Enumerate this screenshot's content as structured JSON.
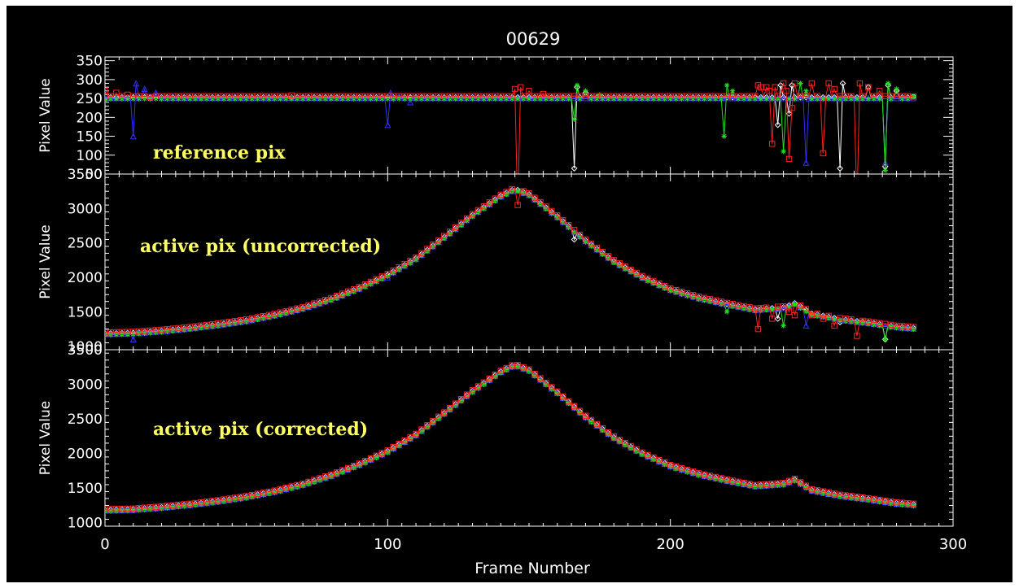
{
  "chart_data": {
    "type": "line",
    "title": "00629",
    "xlabel": "Frame Number",
    "xlim": [
      0,
      300
    ],
    "x_ticks": [
      "0",
      "100",
      "200",
      "300"
    ],
    "colors": {
      "red": "#ff2020",
      "green": "#20e020",
      "blue": "#3030ff",
      "white": "#ffffff"
    },
    "panels": [
      {
        "label": "reference pix",
        "ylabel": "Pixel Value",
        "ylim": [
          50,
          360
        ],
        "y_ticks": [
          "350",
          "300",
          "250",
          "200",
          "150",
          "100",
          "50"
        ],
        "y_tick_values": [
          350,
          300,
          250,
          200,
          150,
          100,
          50
        ],
        "shape": "flat",
        "baseline": 252,
        "series": [
          {
            "color": "red",
            "marker": "square",
            "offset": 4,
            "points": [
              [
                0,
                270
              ],
              [
                4,
                265
              ],
              [
                8,
                260
              ],
              [
                12,
                256
              ],
              [
                16,
                254
              ],
              [
                66,
                258
              ],
              [
                145,
                275
              ],
              [
                146,
                -50
              ],
              [
                147,
                280
              ],
              [
                150,
                270
              ],
              [
                155,
                262
              ],
              [
                231,
                285
              ],
              [
                232,
                280
              ],
              [
                234,
                280
              ],
              [
                235,
                270
              ],
              [
                236,
                130
              ],
              [
                237,
                280
              ],
              [
                240,
                290
              ],
              [
                241,
                270
              ],
              [
                242,
                90
              ],
              [
                243,
                225
              ],
              [
                244,
                290
              ],
              [
                250,
                290
              ],
              [
                254,
                105
              ],
              [
                256,
                290
              ],
              [
                258,
                275
              ],
              [
                266,
                -30
              ],
              [
                267,
                290
              ],
              [
                270,
                280
              ],
              [
                274,
                270
              ],
              [
                286,
                255
              ]
            ]
          },
          {
            "color": "green",
            "marker": "asterisk",
            "offset": -3,
            "points": [
              [
                0,
                245
              ],
              [
                166,
                195
              ],
              [
                167,
                285
              ],
              [
                170,
                270
              ],
              [
                175,
                260
              ],
              [
                219,
                150
              ],
              [
                220,
                285
              ],
              [
                222,
                270
              ],
              [
                240,
                110
              ],
              [
                246,
                290
              ],
              [
                248,
                270
              ],
              [
                276,
                60
              ],
              [
                277,
                290
              ],
              [
                280,
                275
              ],
              [
                286,
                255
              ]
            ]
          },
          {
            "color": "blue",
            "marker": "triangle",
            "offset": -1,
            "points": [
              [
                0,
                252
              ],
              [
                10,
                150
              ],
              [
                11,
                290
              ],
              [
                14,
                275
              ],
              [
                18,
                265
              ],
              [
                100,
                180
              ],
              [
                101,
                265
              ],
              [
                104,
                255
              ],
              [
                108,
                240
              ],
              [
                109,
                252
              ],
              [
                248,
                80
              ],
              [
                249,
                250
              ],
              [
                276,
                80
              ]
            ]
          },
          {
            "color": "white",
            "marker": "diamond",
            "offset": 1,
            "points": [
              [
                0,
                250
              ],
              [
                166,
                65
              ],
              [
                167,
                280
              ],
              [
                170,
                265
              ],
              [
                238,
                180
              ],
              [
                239,
                285
              ],
              [
                242,
                210
              ],
              [
                243,
                285
              ],
              [
                260,
                65
              ],
              [
                261,
                290
              ],
              [
                270,
                280
              ],
              [
                276,
                70
              ],
              [
                277,
                285
              ],
              [
                280,
                270
              ],
              [
                286,
                255
              ]
            ]
          }
        ]
      },
      {
        "label": "active pix (uncorrected)",
        "ylabel": "Pixel Value",
        "ylim": [
          950,
          3500
        ],
        "y_ticks": [
          "3500",
          "3000",
          "2500",
          "2000",
          "1500",
          "1000"
        ],
        "y_tick_values": [
          3500,
          3000,
          2500,
          2000,
          1500,
          1000
        ],
        "shape": "peak",
        "series": [
          {
            "color": "red",
            "marker": "square",
            "offset": 20,
            "points": [
              [
                146,
                3050
              ],
              [
                231,
                1250
              ],
              [
                236,
                1400
              ],
              [
                242,
                1500
              ],
              [
                244,
                1450
              ],
              [
                250,
                1450
              ],
              [
                254,
                1400
              ],
              [
                258,
                1300
              ],
              [
                266,
                1150
              ]
            ]
          },
          {
            "color": "green",
            "marker": "asterisk",
            "offset": -15,
            "points": [
              [
                147,
                3250
              ],
              [
                220,
                1500
              ],
              [
                240,
                1300
              ],
              [
                276,
                1100
              ]
            ]
          },
          {
            "color": "blue",
            "marker": "triangle",
            "offset": -5,
            "points": [
              [
                10,
                1100
              ],
              [
                100,
                2000
              ],
              [
                248,
                1300
              ]
            ]
          },
          {
            "color": "white",
            "marker": "diamond",
            "offset": 5,
            "points": [
              [
                166,
                2550
              ],
              [
                238,
                1400
              ],
              [
                260,
                1350
              ],
              [
                276,
                1100
              ]
            ]
          }
        ]
      },
      {
        "label": "active pix (corrected)",
        "ylabel": "Pixel Value",
        "ylim": [
          950,
          3500
        ],
        "y_ticks": [
          "3500",
          "3000",
          "2500",
          "2000",
          "1500",
          "1000"
        ],
        "y_tick_values": [
          3500,
          3000,
          2500,
          2000,
          1500,
          1000
        ],
        "shape": "peak",
        "series": [
          {
            "color": "red",
            "marker": "square",
            "offset": 15,
            "points": []
          },
          {
            "color": "green",
            "marker": "asterisk",
            "offset": -15,
            "points": []
          },
          {
            "color": "blue",
            "marker": "triangle",
            "offset": -5,
            "points": []
          },
          {
            "color": "white",
            "marker": "diamond",
            "offset": 5,
            "points": []
          }
        ]
      }
    ],
    "peak_curve": {
      "x": [
        0,
        10,
        20,
        30,
        40,
        50,
        60,
        70,
        80,
        90,
        100,
        110,
        120,
        130,
        140,
        145,
        150,
        160,
        170,
        180,
        190,
        200,
        210,
        220,
        230,
        240,
        244,
        250,
        260,
        270,
        280,
        286
      ],
      "y": [
        1180,
        1190,
        1220,
        1260,
        1310,
        1370,
        1450,
        1550,
        1680,
        1840,
        2030,
        2270,
        2580,
        2900,
        3180,
        3280,
        3200,
        2880,
        2530,
        2230,
        2000,
        1820,
        1700,
        1610,
        1530,
        1560,
        1620,
        1470,
        1390,
        1340,
        1280,
        1260
      ]
    }
  }
}
